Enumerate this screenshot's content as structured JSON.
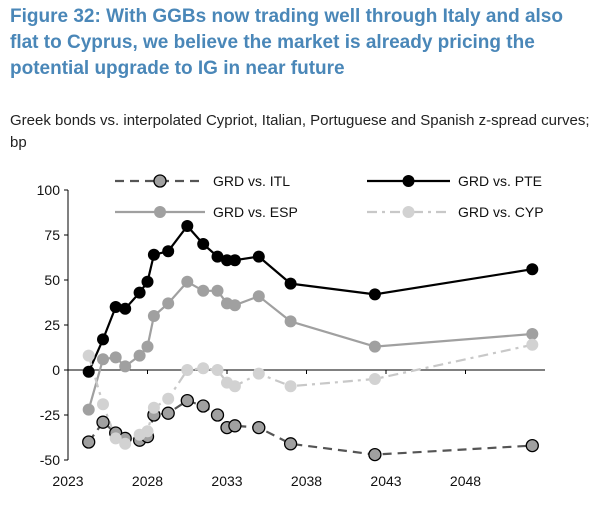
{
  "title": "Figure 32: With GGBs now trading well through Italy and also flat to Cyprus, we believe the market is already pricing the potential upgrade to IG in near future",
  "subtitle": "Greek bonds vs. interpolated Cypriot, Italian, Portuguese and Spanish z-spread curves; bp",
  "chart_data": {
    "type": "line",
    "xlim": [
      2023,
      2053
    ],
    "ylim": [
      -50,
      100
    ],
    "xticks": [
      "2023",
      "2028",
      "2033",
      "2038",
      "2043",
      "2048"
    ],
    "yticks": [
      "100",
      "75",
      "50",
      "25",
      "0",
      "-25",
      "-50"
    ],
    "xtick_values": [
      2023,
      2028,
      2033,
      2038,
      2043,
      2048
    ],
    "ytick_values": [
      100,
      75,
      50,
      25,
      0,
      -25,
      -50
    ],
    "grid": false,
    "legend_position": "top",
    "series": [
      {
        "name": "GRD vs. ITL",
        "color": "#555555",
        "marker_fill": "#a0a0a0",
        "line_style": "dashed",
        "x": [
          2024.3,
          2025.2,
          2026.0,
          2026.6,
          2027.5,
          2028.0,
          2028.4,
          2029.3,
          2030.5,
          2031.5,
          2032.4,
          2033.0,
          2033.5,
          2035.0,
          2037.0,
          2042.3,
          2052.2
        ],
        "y": [
          -40,
          -29,
          -35,
          -38,
          -39,
          -37,
          -25,
          -24,
          -17,
          -20,
          -25,
          -32,
          -31,
          -32,
          -41,
          -47,
          -42
        ]
      },
      {
        "name": "GRD vs. PTE",
        "color": "#000000",
        "marker_fill": "#000000",
        "line_style": "solid",
        "x": [
          2024.3,
          2025.2,
          2026.0,
          2026.6,
          2027.5,
          2028.0,
          2028.4,
          2029.3,
          2030.5,
          2031.5,
          2032.4,
          2033.0,
          2033.5,
          2035.0,
          2037.0,
          2042.3,
          2052.2
        ],
        "y": [
          -1,
          17,
          35,
          34,
          43,
          49,
          64,
          66,
          80,
          70,
          63,
          61,
          61,
          63,
          48,
          42,
          56
        ]
      },
      {
        "name": "GRD vs. ESP",
        "color": "#a0a0a0",
        "marker_fill": "#a0a0a0",
        "line_style": "solid",
        "x": [
          2024.3,
          2025.2,
          2026.0,
          2026.6,
          2027.5,
          2028.0,
          2028.4,
          2029.3,
          2030.5,
          2031.5,
          2032.4,
          2033.0,
          2033.5,
          2035.0,
          2037.0,
          2042.3,
          2052.2
        ],
        "y": [
          -22,
          6,
          7,
          2,
          8,
          13,
          30,
          37,
          49,
          44,
          44,
          37,
          36,
          41,
          27,
          13,
          20
        ]
      },
      {
        "name": "GRD vs. CYP",
        "color": "#c8c8c8",
        "marker_fill": "#d2d2d2",
        "line_style": "dashdot",
        "x": [
          2024.3,
          2025.2,
          2026.0,
          2026.6,
          2027.5,
          2028.0,
          2028.4,
          2029.3,
          2030.5,
          2031.5,
          2032.4,
          2033.0,
          2033.5,
          2035.0,
          2037.0,
          2042.3,
          2052.2
        ],
        "y": [
          8,
          -19,
          -38,
          -41,
          -36,
          -34,
          -21,
          -16,
          0,
          1,
          0,
          -7,
          -9,
          -2,
          -9,
          -5,
          14
        ]
      }
    ]
  }
}
